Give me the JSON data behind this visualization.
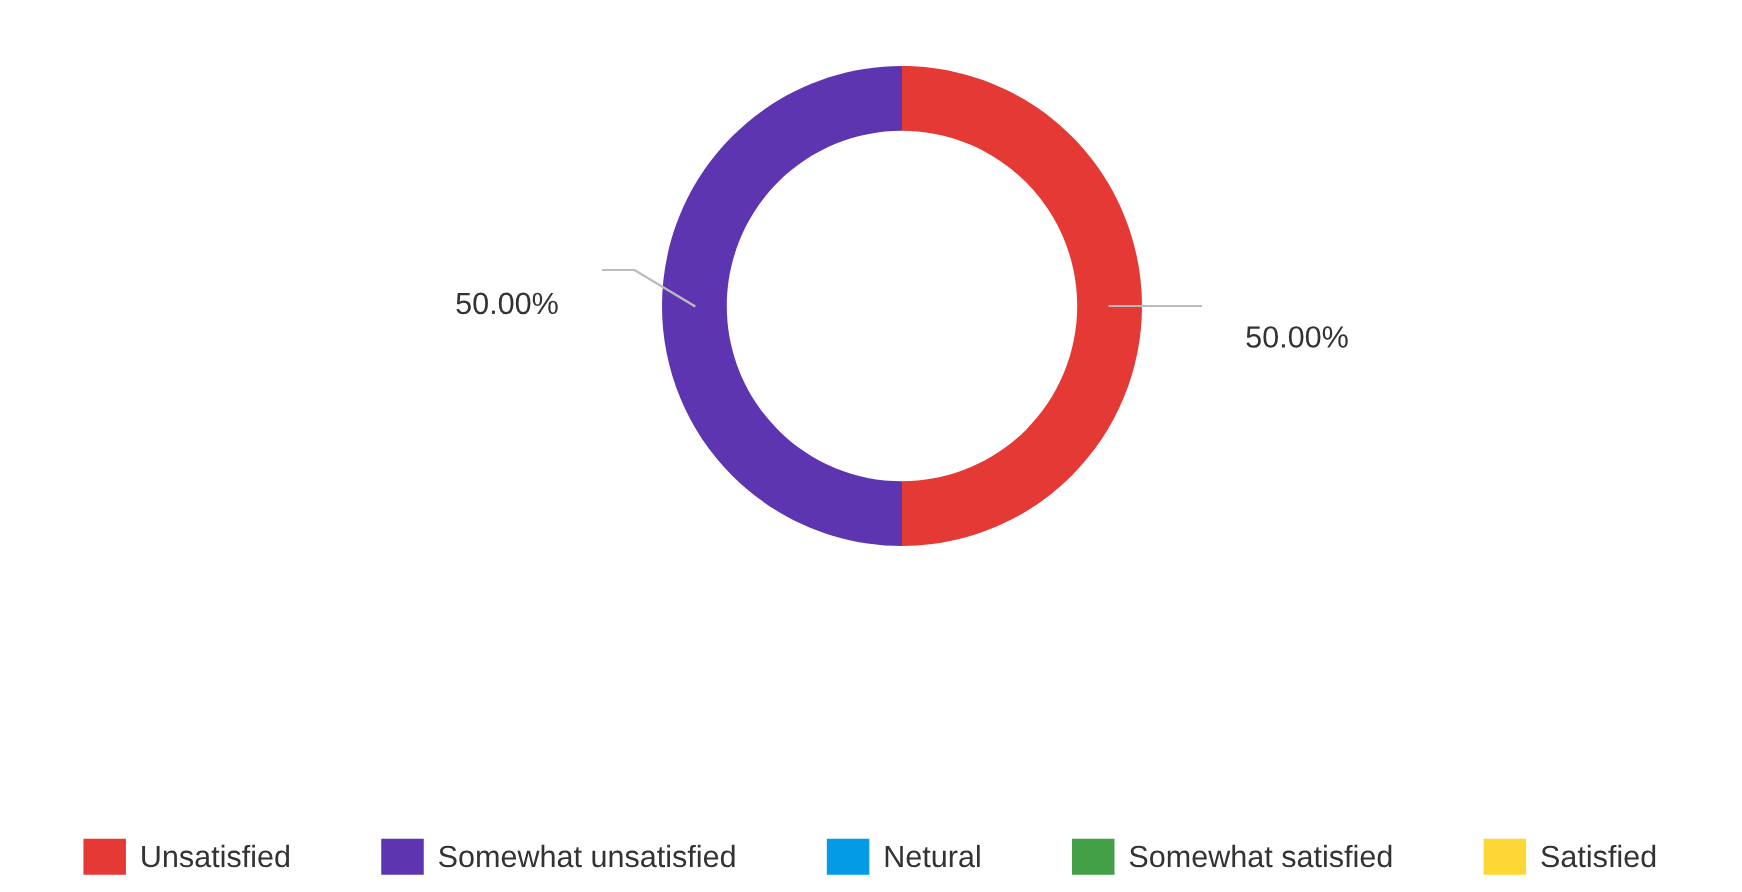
{
  "chart_data": {
    "type": "donut",
    "categories": [
      "Unsatisfied",
      "Somewhat unsatisfied",
      "Netural",
      "Somewhat satisfied",
      "Satisfied"
    ],
    "values": [
      50,
      50,
      0,
      0,
      0
    ],
    "colors": [
      "#e53935",
      "#5e35b1",
      "#039be5",
      "#43a047",
      "#fdd835"
    ],
    "value_labels": [
      "50.00%",
      "50.00%",
      null,
      null,
      null
    ],
    "legend": "bottom"
  }
}
